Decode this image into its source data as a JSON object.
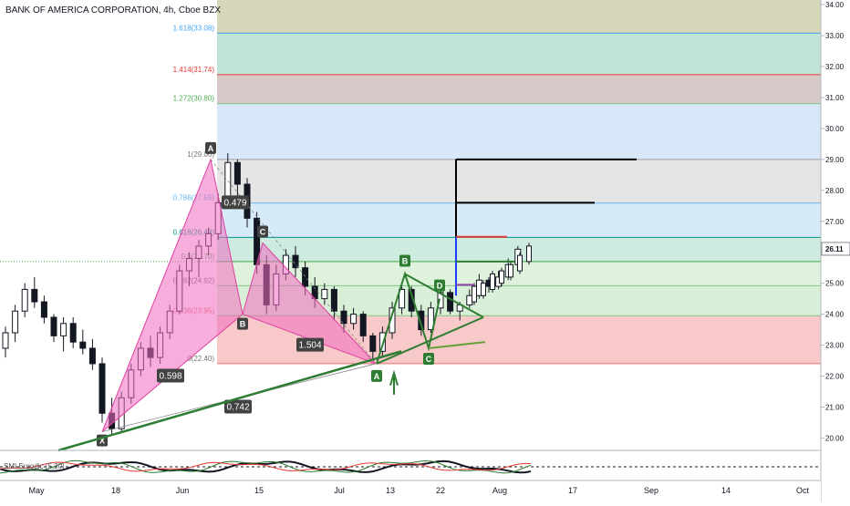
{
  "chart_data": {
    "type": "candlestick",
    "title": "BANK OF AMERICA CORPORATION, 4h, Cboe BZX",
    "ylim": [
      19.6,
      34.15
    ],
    "price_ticks": [
      "20.00",
      "21.00",
      "22.00",
      "23.00",
      "24.00",
      "25.00",
      "26.00",
      "27.00",
      "28.00",
      "29.00",
      "30.00",
      "31.00",
      "32.00",
      "33.00",
      "34.00"
    ],
    "last_price": "26.11",
    "time_ticks": [
      "May",
      "18",
      "Jun",
      "15",
      "Jul",
      "13",
      "22",
      "Aug",
      "17",
      "Sep",
      "14",
      "Oct"
    ],
    "grid": false,
    "candles": [
      {
        "o": 22.9,
        "h": 23.6,
        "l": 22.6,
        "c": 23.4
      },
      {
        "o": 23.4,
        "h": 24.3,
        "l": 23.1,
        "c": 24.1
      },
      {
        "o": 24.1,
        "h": 25.0,
        "l": 23.9,
        "c": 24.8
      },
      {
        "o": 24.8,
        "h": 25.2,
        "l": 24.2,
        "c": 24.4
      },
      {
        "o": 24.4,
        "h": 24.6,
        "l": 23.7,
        "c": 23.9
      },
      {
        "o": 23.9,
        "h": 24.0,
        "l": 23.1,
        "c": 23.3
      },
      {
        "o": 23.3,
        "h": 23.9,
        "l": 22.8,
        "c": 23.7
      },
      {
        "o": 23.7,
        "h": 23.9,
        "l": 22.9,
        "c": 23.1
      },
      {
        "o": 23.1,
        "h": 23.5,
        "l": 22.7,
        "c": 22.9
      },
      {
        "o": 22.9,
        "h": 23.2,
        "l": 22.2,
        "c": 22.4
      },
      {
        "o": 22.4,
        "h": 22.6,
        "l": 20.5,
        "c": 20.8
      },
      {
        "o": 20.8,
        "h": 21.3,
        "l": 20.1,
        "c": 20.3
      },
      {
        "o": 20.3,
        "h": 21.5,
        "l": 20.2,
        "c": 21.3
      },
      {
        "o": 21.3,
        "h": 22.4,
        "l": 21.1,
        "c": 22.2
      },
      {
        "o": 22.2,
        "h": 23.1,
        "l": 22.0,
        "c": 22.9
      },
      {
        "o": 22.9,
        "h": 23.3,
        "l": 22.3,
        "c": 22.6
      },
      {
        "o": 22.6,
        "h": 23.6,
        "l": 22.4,
        "c": 23.4
      },
      {
        "o": 23.4,
        "h": 24.3,
        "l": 23.2,
        "c": 24.1
      },
      {
        "o": 24.1,
        "h": 25.6,
        "l": 24.0,
        "c": 25.4
      },
      {
        "o": 25.4,
        "h": 26.0,
        "l": 24.9,
        "c": 25.8
      },
      {
        "o": 25.8,
        "h": 26.4,
        "l": 25.2,
        "c": 26.2
      },
      {
        "o": 26.2,
        "h": 26.8,
        "l": 25.9,
        "c": 26.6
      },
      {
        "o": 26.6,
        "h": 27.9,
        "l": 26.4,
        "c": 27.6
      },
      {
        "o": 27.6,
        "h": 29.2,
        "l": 27.4,
        "c": 28.9
      },
      {
        "o": 28.9,
        "h": 29.0,
        "l": 27.8,
        "c": 28.2
      },
      {
        "o": 28.2,
        "h": 28.4,
        "l": 26.8,
        "c": 27.1
      },
      {
        "o": 27.1,
        "h": 27.3,
        "l": 25.3,
        "c": 25.6
      },
      {
        "o": 25.6,
        "h": 25.9,
        "l": 24.0,
        "c": 24.3
      },
      {
        "o": 24.3,
        "h": 25.6,
        "l": 24.1,
        "c": 25.3
      },
      {
        "o": 25.3,
        "h": 26.1,
        "l": 25.1,
        "c": 25.9
      },
      {
        "o": 25.9,
        "h": 26.2,
        "l": 25.2,
        "c": 25.5
      },
      {
        "o": 25.5,
        "h": 25.7,
        "l": 24.6,
        "c": 24.9
      },
      {
        "o": 24.9,
        "h": 25.2,
        "l": 24.2,
        "c": 24.5
      },
      {
        "o": 24.5,
        "h": 25.0,
        "l": 24.3,
        "c": 24.8
      },
      {
        "o": 24.8,
        "h": 24.9,
        "l": 23.8,
        "c": 24.1
      },
      {
        "o": 24.1,
        "h": 24.3,
        "l": 23.4,
        "c": 23.7
      },
      {
        "o": 23.7,
        "h": 24.2,
        "l": 23.5,
        "c": 24.0
      },
      {
        "o": 24.0,
        "h": 24.1,
        "l": 23.1,
        "c": 23.3
      },
      {
        "o": 23.3,
        "h": 23.4,
        "l": 22.5,
        "c": 22.8
      },
      {
        "o": 22.8,
        "h": 23.6,
        "l": 22.6,
        "c": 23.4
      },
      {
        "o": 23.4,
        "h": 24.4,
        "l": 23.2,
        "c": 24.2
      },
      {
        "o": 24.2,
        "h": 25.0,
        "l": 24.0,
        "c": 24.8
      },
      {
        "o": 24.8,
        "h": 24.9,
        "l": 23.9,
        "c": 24.1
      },
      {
        "o": 24.1,
        "h": 24.3,
        "l": 23.3,
        "c": 23.5
      },
      {
        "o": 23.5,
        "h": 24.4,
        "l": 23.4,
        "c": 24.2
      },
      {
        "o": 24.2,
        "h": 24.9,
        "l": 24.0,
        "c": 24.7
      },
      {
        "o": 24.7,
        "h": 24.8,
        "l": 24.0,
        "c": 24.1
      },
      {
        "o": 24.1,
        "h": 24.4,
        "l": 23.8,
        "c": 24.3
      },
      {
        "o": 24.3,
        "h": 24.8,
        "l": 24.2,
        "c": 24.6
      },
      {
        "o": 24.6,
        "h": 25.3,
        "l": 24.5,
        "c": 25.1
      },
      {
        "o": 25.1,
        "h": 25.2,
        "l": 24.7,
        "c": 24.9
      },
      {
        "o": 24.9,
        "h": 25.4,
        "l": 24.8,
        "c": 25.2
      },
      {
        "o": 25.2,
        "h": 25.8,
        "l": 25.1,
        "c": 25.6
      },
      {
        "o": 25.6,
        "h": 26.2,
        "l": 25.5,
        "c": 26.1
      }
    ],
    "fib_levels": [
      {
        "ratio": "0",
        "label": "0(22.40)",
        "price": 22.4,
        "fill": "#f7c9c9",
        "line": "#e57373"
      },
      {
        "ratio": "0.236",
        "label": "0.236(23.95)",
        "price": 23.95,
        "fill": "#d9efd7",
        "line": "#81c784"
      },
      {
        "ratio": "0.382",
        "label": "0.382(24.92)",
        "price": 24.92,
        "fill": "#dff2dc",
        "line": "#81c784"
      },
      {
        "ratio": "0.5",
        "label": "0.5(25.70)",
        "price": 25.7,
        "fill": "#cdebdf",
        "line": "#4caf50"
      },
      {
        "ratio": "0.618",
        "label": "0.618(26.48)",
        "price": 26.48,
        "fill": "#d6ebf7",
        "line": "#009688"
      },
      {
        "ratio": "0.786",
        "label": "0.786(27.59)",
        "price": 27.59,
        "fill": "#e5e5e5",
        "line": "#64b5f6"
      },
      {
        "ratio": "1",
        "label": "1(29.00)",
        "price": 29.0,
        "fill": "#d8e8f8",
        "line": "#9e9e9e"
      },
      {
        "ratio": "1.272",
        "label": "1.272(30.80)",
        "price": 30.8,
        "fill": "#d8c8c8",
        "line": "#81c784"
      },
      {
        "ratio": "1.414",
        "label": "1.414(31.74)",
        "price": 31.74,
        "fill": "#bfe4d5",
        "line": "#e53935"
      },
      {
        "ratio": "1.618",
        "label": "1.618(33.08)",
        "price": 33.08,
        "fill": "#d6d6b8",
        "line": "#42a5f5"
      }
    ],
    "fib_label_colors": [
      "#757575",
      "#e57373",
      "#757575",
      "#4caf50",
      "#009688",
      "#64b5f6",
      "#757575",
      "#4caf50",
      "#e53935",
      "#42a5f5"
    ],
    "pattern_points": {
      "X": "X",
      "A": "A",
      "B": "B",
      "C": "C",
      "D": "D"
    },
    "ratios": [
      "0.479",
      "1.504",
      "0.598",
      "0.742"
    ],
    "oscillator_label": "SMI Ergodic (5,20)",
    "colors": {
      "bull": "#ffffff",
      "bear": "#131722",
      "harmonic": "#f06bbf",
      "green": "#2e7d32",
      "red": "#e53935",
      "blue": "#1e3cff",
      "black": "#000000",
      "last": "#131722"
    }
  }
}
